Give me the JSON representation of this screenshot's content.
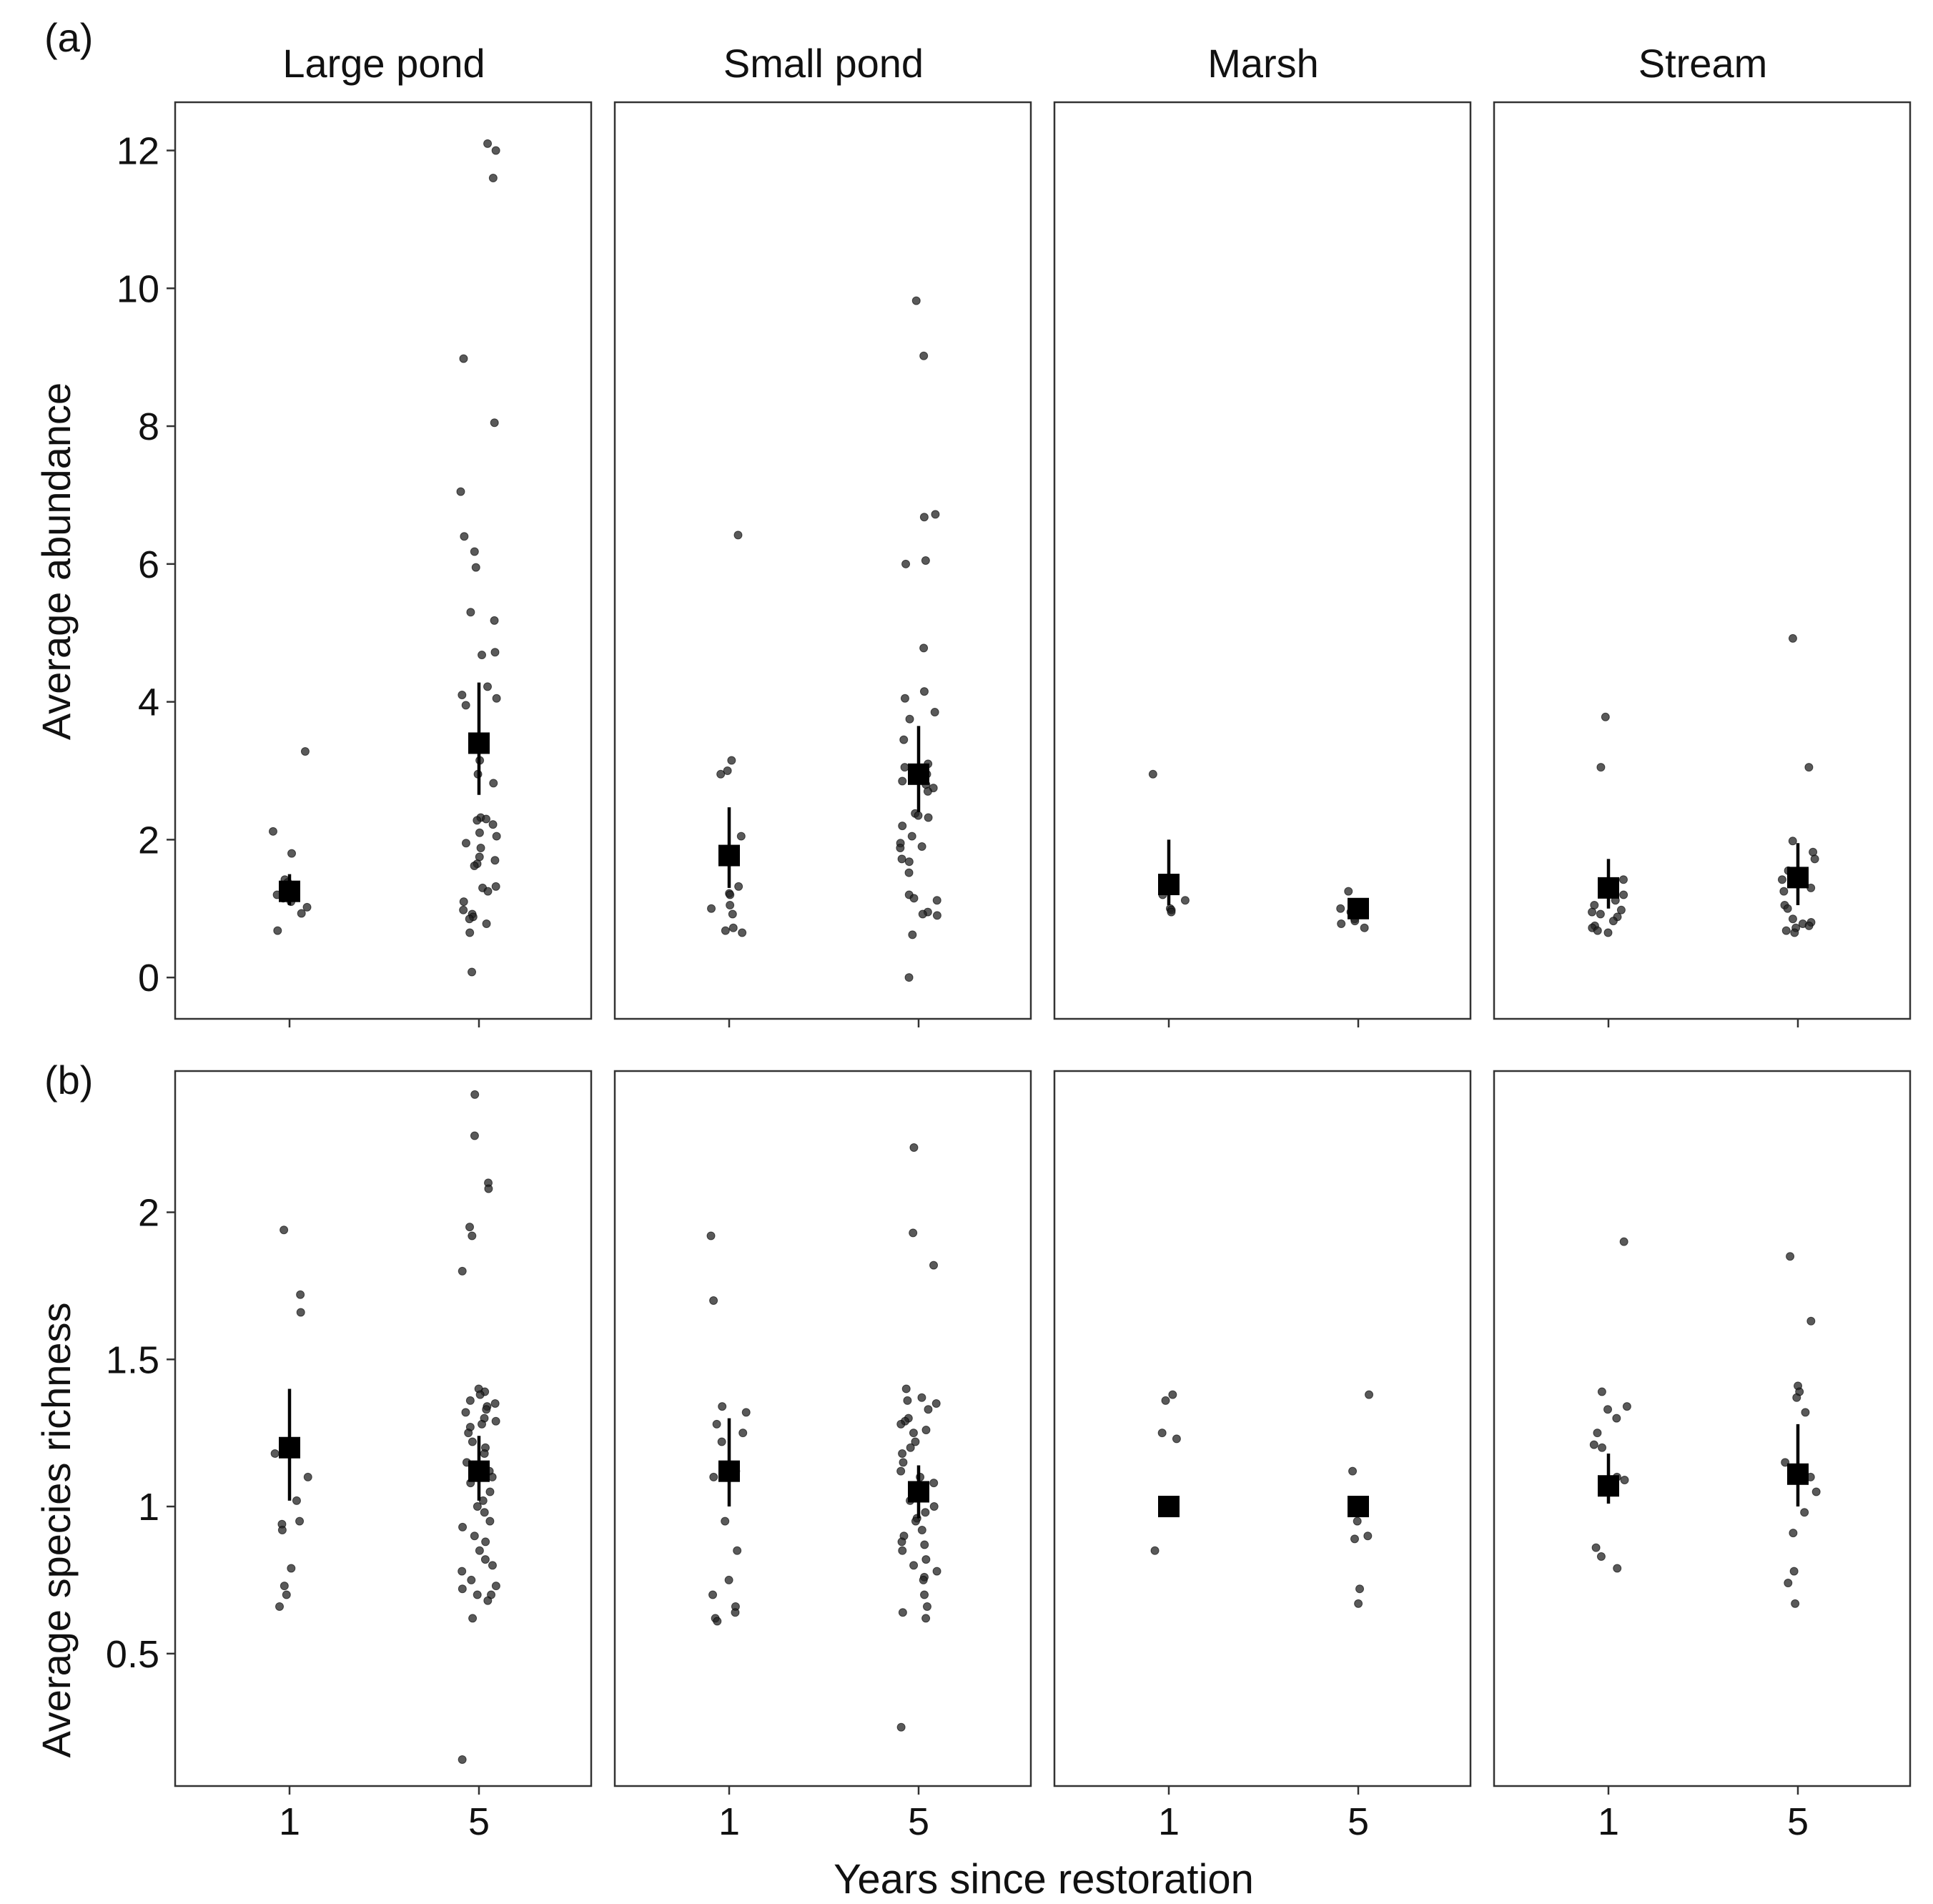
{
  "figure": {
    "xlabel": "Years since restoration",
    "facets": [
      "Large pond",
      "Small pond",
      "Marsh",
      "Stream"
    ],
    "x_categories": [
      "1",
      "5"
    ]
  },
  "chart_data": [
    {
      "type": "scatter",
      "panel_label": "(a)",
      "ylabel": "Average abundance",
      "ylim": [
        -0.6,
        12.7
      ],
      "yticks": [
        0,
        2,
        4,
        6,
        8,
        10,
        12
      ],
      "ytick_labels": [
        "0",
        "2",
        "4",
        "6",
        "8",
        "10",
        "12"
      ],
      "categories": [
        "1",
        "5"
      ],
      "facets": [
        {
          "name": "Large pond",
          "groups": [
            {
              "x": "1",
              "mean": 1.25,
              "lower": 1.05,
              "upper": 1.5,
              "points": [
                3.28,
                2.12,
                1.8,
                1.42,
                1.38,
                1.3,
                1.2,
                1.15,
                1.1,
                1.02,
                0.93,
                0.68
              ]
            },
            {
              "x": "5",
              "mean": 3.4,
              "lower": 2.65,
              "upper": 4.28,
              "points": [
                12.1,
                12.0,
                11.6,
                8.98,
                8.05,
                7.05,
                6.4,
                6.18,
                5.95,
                5.3,
                5.18,
                4.72,
                4.68,
                4.22,
                4.1,
                4.05,
                3.95,
                3.15,
                2.95,
                2.82,
                2.32,
                2.3,
                2.28,
                2.22,
                2.1,
                2.05,
                1.95,
                1.88,
                1.75,
                1.7,
                1.65,
                1.62,
                1.32,
                1.3,
                1.25,
                1.1,
                0.98,
                0.92,
                0.88,
                0.85,
                0.78,
                0.65,
                0.08
              ]
            }
          ]
        },
        {
          "name": "Small pond",
          "groups": [
            {
              "x": "1",
              "mean": 1.77,
              "lower": 1.3,
              "upper": 2.47,
              "points": [
                6.42,
                3.15,
                3.0,
                2.95,
                2.05,
                1.32,
                1.22,
                1.2,
                1.05,
                1.0,
                0.92,
                0.72,
                0.68,
                0.65
              ]
            },
            {
              "x": "5",
              "mean": 2.95,
              "lower": 2.4,
              "upper": 3.65,
              "points": [
                9.82,
                9.02,
                6.72,
                6.68,
                6.05,
                6.0,
                4.78,
                4.15,
                4.05,
                3.85,
                3.75,
                3.45,
                3.1,
                3.05,
                2.95,
                2.9,
                2.85,
                2.8,
                2.75,
                2.7,
                2.38,
                2.35,
                2.32,
                2.2,
                2.05,
                1.95,
                1.9,
                1.88,
                1.72,
                1.68,
                1.52,
                1.2,
                1.15,
                1.12,
                0.95,
                0.92,
                0.9,
                0.62,
                0.0
              ]
            }
          ]
        },
        {
          "name": "Marsh",
          "groups": [
            {
              "x": "1",
              "mean": 1.35,
              "lower": 1.05,
              "upper": 2.0,
              "points": [
                2.95,
                1.42,
                1.2,
                1.12,
                1.0,
                0.98,
                0.95
              ]
            },
            {
              "x": "5",
              "mean": 1.0,
              "lower": 0.9,
              "upper": 1.1,
              "points": [
                1.25,
                1.0,
                0.95,
                0.85,
                0.82,
                0.78,
                0.72
              ]
            }
          ]
        },
        {
          "name": "Stream",
          "groups": [
            {
              "x": "1",
              "mean": 1.3,
              "lower": 1.0,
              "upper": 1.72,
              "points": [
                3.78,
                3.05,
                1.42,
                1.38,
                1.2,
                1.12,
                1.05,
                0.98,
                0.95,
                0.92,
                0.88,
                0.82,
                0.75,
                0.72,
                0.68,
                0.65
              ]
            },
            {
              "x": "5",
              "mean": 1.45,
              "lower": 1.05,
              "upper": 1.95,
              "points": [
                4.92,
                3.05,
                1.98,
                1.82,
                1.72,
                1.55,
                1.42,
                1.3,
                1.25,
                1.05,
                1.0,
                0.85,
                0.8,
                0.78,
                0.75,
                0.72,
                0.68,
                0.65
              ]
            }
          ]
        }
      ]
    },
    {
      "type": "scatter",
      "panel_label": "(b)",
      "ylabel": "Average species richness",
      "ylim": [
        0.05,
        2.48
      ],
      "yticks": [
        0.5,
        1,
        1.5,
        2
      ],
      "ytick_labels": [
        "0.5",
        "1",
        "1.5",
        "2"
      ],
      "categories": [
        "1",
        "5"
      ],
      "facets": [
        {
          "name": "Large pond",
          "groups": [
            {
              "x": "1",
              "mean": 1.2,
              "lower": 1.02,
              "upper": 1.4,
              "points": [
                1.94,
                1.72,
                1.66,
                1.22,
                1.2,
                1.18,
                1.1,
                1.02,
                0.95,
                0.94,
                0.92,
                0.79,
                0.73,
                0.7,
                0.66
              ]
            },
            {
              "x": "5",
              "mean": 1.12,
              "lower": 1.02,
              "upper": 1.24,
              "points": [
                2.4,
                2.26,
                2.1,
                2.08,
                1.95,
                1.92,
                1.8,
                1.4,
                1.39,
                1.38,
                1.36,
                1.35,
                1.34,
                1.33,
                1.32,
                1.3,
                1.29,
                1.28,
                1.27,
                1.25,
                1.22,
                1.2,
                1.18,
                1.15,
                1.12,
                1.1,
                1.08,
                1.05,
                1.02,
                1.0,
                0.98,
                0.95,
                0.93,
                0.9,
                0.88,
                0.85,
                0.82,
                0.8,
                0.78,
                0.75,
                0.73,
                0.72,
                0.7,
                0.7,
                0.68,
                0.62,
                0.14
              ]
            }
          ]
        },
        {
          "name": "Small pond",
          "groups": [
            {
              "x": "1",
              "mean": 1.12,
              "lower": 1.0,
              "upper": 1.3,
              "points": [
                1.92,
                1.7,
                1.34,
                1.32,
                1.28,
                1.25,
                1.22,
                1.12,
                1.1,
                0.95,
                0.85,
                0.75,
                0.7,
                0.66,
                0.64,
                0.62,
                0.61
              ]
            },
            {
              "x": "5",
              "mean": 1.05,
              "lower": 0.96,
              "upper": 1.14,
              "points": [
                2.22,
                1.93,
                1.82,
                1.4,
                1.37,
                1.36,
                1.35,
                1.33,
                1.3,
                1.29,
                1.28,
                1.26,
                1.25,
                1.22,
                1.2,
                1.18,
                1.15,
                1.12,
                1.1,
                1.08,
                1.07,
                1.05,
                1.02,
                1.0,
                0.98,
                0.96,
                0.95,
                0.92,
                0.9,
                0.88,
                0.87,
                0.85,
                0.82,
                0.8,
                0.78,
                0.76,
                0.75,
                0.7,
                0.66,
                0.64,
                0.62,
                0.25
              ]
            }
          ]
        },
        {
          "name": "Marsh",
          "groups": [
            {
              "x": "1",
              "mean": 1.0,
              "lower": 1.0,
              "upper": 1.0,
              "points": [
                1.38,
                1.36,
                1.25,
                1.23,
                0.85
              ]
            },
            {
              "x": "5",
              "mean": 1.0,
              "lower": 1.0,
              "upper": 1.0,
              "points": [
                1.38,
                1.12,
                0.95,
                0.9,
                0.89,
                0.72,
                0.67
              ]
            }
          ]
        },
        {
          "name": "Stream",
          "groups": [
            {
              "x": "1",
              "mean": 1.07,
              "lower": 1.01,
              "upper": 1.18,
              "points": [
                1.9,
                1.39,
                1.34,
                1.33,
                1.3,
                1.25,
                1.21,
                1.2,
                1.1,
                1.09,
                1.05,
                0.86,
                0.83,
                0.79
              ]
            },
            {
              "x": "5",
              "mean": 1.11,
              "lower": 1.0,
              "upper": 1.28,
              "points": [
                1.85,
                1.63,
                1.41,
                1.39,
                1.37,
                1.32,
                1.15,
                1.12,
                1.1,
                1.05,
                0.98,
                0.91,
                0.78,
                0.74,
                0.67
              ]
            }
          ]
        }
      ]
    }
  ]
}
